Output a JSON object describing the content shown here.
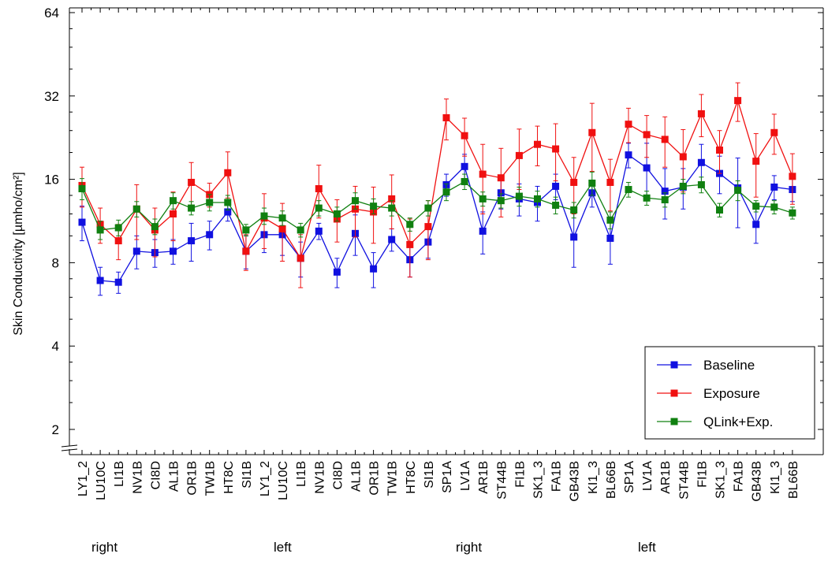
{
  "chart_data": {
    "type": "line",
    "ylabel": "Skin Conductivity [µmho/cm²]",
    "yscale": "log2",
    "ylim": [
      1.8,
      64
    ],
    "yticks": [
      2,
      4,
      8,
      16,
      32,
      64
    ],
    "grid": false,
    "legend_position": "bottom-right",
    "categories": [
      "LY1_2",
      "LU10C",
      "LI1B",
      "NV1B",
      "CI8D",
      "AL1B",
      "OR1B",
      "TW1B",
      "HT8C",
      "SI1B",
      "LY1_2",
      "LU10C",
      "LI1B",
      "NV1B",
      "CI8D",
      "AL1B",
      "OR1B",
      "TW1B",
      "HT8C",
      "SI1B",
      "SP1A",
      "LV1A",
      "AR1B",
      "ST44B",
      "FI1B",
      "SK1_3",
      "FA1B",
      "GB43B",
      "KI1_3",
      "BL66B",
      "SP1A",
      "LV1A",
      "AR1B",
      "ST44B",
      "FI1B",
      "SK1_3",
      "FA1B",
      "GB43B",
      "KI1_3",
      "BL66B"
    ],
    "groups": [
      {
        "label": "right",
        "start": 0,
        "end": 9
      },
      {
        "label": "left",
        "start": 10,
        "end": 19
      },
      {
        "label": "right",
        "start": 20,
        "end": 29
      },
      {
        "label": "left",
        "start": 30,
        "end": 39
      }
    ],
    "series": [
      {
        "name": "Baseline",
        "color": "#1010e0",
        "values": [
          11.2,
          6.9,
          6.8,
          8.8,
          8.7,
          8.8,
          9.6,
          10.1,
          12.2,
          8.8,
          10.1,
          10.1,
          8.3,
          10.4,
          7.4,
          10.2,
          7.6,
          9.7,
          8.2,
          9.5,
          15.3,
          17.8,
          10.4,
          14.3,
          13.6,
          13.2,
          15.1,
          9.9,
          14.3,
          9.8,
          19.6,
          17.6,
          14.5,
          15.0,
          18.4,
          16.8,
          14.9,
          11.0,
          15.0,
          14.7
        ],
        "errors": [
          1.6,
          0.8,
          0.6,
          1.2,
          1.0,
          0.9,
          1.5,
          1.2,
          0.9,
          1.2,
          1.4,
          1.6,
          1.2,
          0.7,
          0.9,
          1.7,
          1.1,
          0.9,
          1.1,
          1.2,
          1.4,
          1.9,
          1.8,
          1.8,
          1.8,
          1.9,
          1.6,
          2.2,
          1.6,
          1.9,
          2.0,
          4.0,
          3.0,
          2.5,
          3.0,
          2.6,
          4.2,
          1.6,
          1.5,
          1.4
        ]
      },
      {
        "name": "Exposure",
        "color": "#f01010",
        "values": [
          15.2,
          11.0,
          9.6,
          12.5,
          10.5,
          12.0,
          15.6,
          14.1,
          16.9,
          8.8,
          11.6,
          10.6,
          8.3,
          14.8,
          11.5,
          12.5,
          12.2,
          13.6,
          9.3,
          10.8,
          26.7,
          23.0,
          16.7,
          16.2,
          19.5,
          21.4,
          20.6,
          15.6,
          23.6,
          15.6,
          25.3,
          23.2,
          22.3,
          19.3,
          27.6,
          20.4,
          30.8,
          18.6,
          23.6,
          16.4
        ],
        "errors": [
          2.5,
          1.6,
          1.4,
          2.8,
          2.1,
          2.4,
          2.8,
          1.4,
          3.2,
          1.3,
          2.6,
          2.5,
          1.8,
          3.2,
          2.0,
          2.6,
          2.8,
          3.0,
          2.2,
          2.6,
          4.5,
          3.6,
          4.7,
          4.5,
          4.8,
          3.5,
          4.8,
          3.6,
          6.5,
          3.3,
          3.6,
          4.0,
          4.6,
          4.9,
          4.8,
          3.6,
          4.9,
          4.8,
          3.9,
          3.4
        ]
      },
      {
        "name": "QLink+Exp.",
        "color": "#108010",
        "values": [
          14.8,
          10.5,
          10.7,
          12.5,
          10.8,
          13.4,
          12.6,
          13.2,
          13.2,
          10.5,
          11.8,
          11.6,
          10.5,
          12.6,
          12.0,
          13.4,
          12.8,
          12.6,
          11.0,
          12.6,
          14.4,
          15.7,
          13.6,
          13.4,
          13.9,
          13.6,
          12.9,
          12.4,
          15.5,
          11.4,
          14.7,
          13.7,
          13.5,
          15.1,
          15.3,
          12.4,
          14.6,
          12.8,
          12.7,
          12.1
        ],
        "errors": [
          1.3,
          0.8,
          0.7,
          0.8,
          0.7,
          0.9,
          0.7,
          0.9,
          0.8,
          0.5,
          0.8,
          0.7,
          0.6,
          0.8,
          0.7,
          0.9,
          0.8,
          0.8,
          0.6,
          0.8,
          1.0,
          1.0,
          0.8,
          0.8,
          1.1,
          0.9,
          0.9,
          0.8,
          1.5,
          0.8,
          0.9,
          0.8,
          0.8,
          0.9,
          1.0,
          0.7,
          1.2,
          0.6,
          0.7,
          0.6
        ]
      }
    ]
  }
}
